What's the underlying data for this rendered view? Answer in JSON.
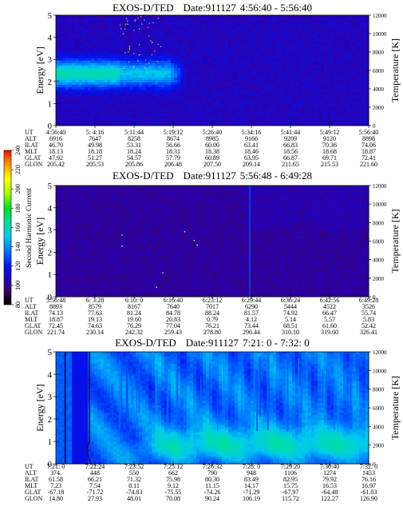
{
  "colorbar": {
    "title": "Second Harmonic Current",
    "ticks": [
      "240",
      "220",
      "200",
      "180",
      "160",
      "140",
      "120",
      "100",
      "80"
    ],
    "colors": [
      "#000000",
      "#3a0070",
      "#2a00b0",
      "#0010f0",
      "#0070ff",
      "#00c8f0",
      "#00e0a0",
      "#00e020",
      "#a0ff00",
      "#ffff00",
      "#ffb000",
      "#ff6000",
      "#ff0000"
    ]
  },
  "panels": [
    {
      "title": "EXOS-D/TED",
      "date": "Date:911127",
      "time_range": "4:56:40 - 5:56:40",
      "ylabel_left": "Energy [eV]",
      "ylabel_right": "Temperature [K]",
      "y_ticks": [
        "0",
        "1",
        "2",
        "3",
        "4",
        "5"
      ],
      "y_right_ticks": [
        "0",
        "2000",
        "4000",
        "6000",
        "8000",
        "10000",
        "12000"
      ],
      "row_labels": [
        "UT",
        "ALT",
        "ILAT",
        "MLT",
        "GLAT",
        "GLON"
      ],
      "columns": [
        [
          "4:56:40",
          "6916",
          "46.70",
          "18.13",
          "47.92",
          "205.42"
        ],
        [
          "5: 4:16",
          "7647",
          "49.98",
          "18.18",
          "51.27",
          "205.53"
        ],
        [
          "5:11:44",
          "8258",
          "53.31",
          "18.24",
          "54.57",
          "205.86"
        ],
        [
          "5:19:12",
          "8674",
          "56.66",
          "18.31",
          "57.79",
          "206.48"
        ],
        [
          "5:26:40",
          "8985",
          "60.00",
          "18.38",
          "60.89",
          "207.50"
        ],
        [
          "5:34:16",
          "9166",
          "63.41",
          "18.46",
          "63.95",
          "209.14"
        ],
        [
          "5:41:44",
          "9209",
          "66.83",
          "18.56",
          "66.87",
          "211.65"
        ],
        [
          "5:49:12",
          "9120",
          "70.36",
          "18.68",
          "69.71",
          "215.53"
        ],
        [
          "5:56:40",
          "8898",
          "74.06",
          "18.87",
          "72.41",
          "221.60"
        ]
      ]
    },
    {
      "title": "EXOS-D/TED",
      "date": "Date:911127",
      "time_range": "5:56:48 - 6:49:28",
      "ylabel_left": "Energy [eV]",
      "ylabel_right": "Temperature [K]",
      "y_ticks": [
        "0",
        "1",
        "2",
        "3",
        "4",
        "5"
      ],
      "y_right_ticks": [
        "0",
        "2000",
        "4000",
        "6000",
        "8000",
        "10000",
        "12000"
      ],
      "row_labels": [
        "UT",
        "ALT",
        "ILAT",
        "MLT",
        "GLAT",
        "GLON"
      ],
      "columns": [
        [
          "5:56:48",
          "8893",
          "74.13",
          "18.87",
          "72.45",
          "221.74"
        ],
        [
          "6: 3:28",
          "8579",
          "77.63",
          "19.13",
          "74.63",
          "230.14"
        ],
        [
          "6:10: 0",
          "8167",
          "81.24",
          "19.60",
          "76.29",
          "242.32"
        ],
        [
          "6:16:40",
          "7640",
          "84.78",
          "20.83",
          "77.04",
          "259.43"
        ],
        [
          "6:23:12",
          "7017",
          "88.24",
          "0.79",
          "76.21",
          "278.80"
        ],
        [
          "6:29:44",
          "6290",
          "81.57",
          "4.12",
          "73.44",
          "296.44"
        ],
        [
          "6:36:24",
          "5444",
          "74.92",
          "5.14",
          "68.51",
          "310.10"
        ],
        [
          "6:42:56",
          "4522",
          "66.47",
          "5.57",
          "61.60",
          "319.60"
        ],
        [
          "6:49:28",
          "3526",
          "55.74",
          "5.83",
          "52.42",
          "326.41"
        ]
      ]
    },
    {
      "title": "EXOS-D/TED",
      "date": "Date:911127",
      "time_range": "7:21: 0 - 7:32: 0",
      "ylabel_left": "Energy [eV]",
      "ylabel_right": "Temperature [K]",
      "y_ticks": [
        "0",
        "1",
        "2",
        "3",
        "4",
        "5"
      ],
      "y_right_ticks": [
        "0",
        "2000",
        "4000",
        "6000",
        "8000",
        "10000",
        "12000"
      ],
      "row_labels": [
        "UT",
        "ALT",
        "ILAT",
        "MLT",
        "GLAT",
        "GLON"
      ],
      "columns": [
        [
          "7:21: 0",
          "374.",
          "61.58",
          "7.23",
          "-67.18",
          "14.80"
        ],
        [
          "7:22:24",
          "448",
          "66.21",
          "7.54",
          "-71.72",
          "27.93"
        ],
        [
          "7:23:52",
          "550",
          "71.32",
          "8.11",
          "-74.83",
          "48.01"
        ],
        [
          "7:25:12",
          "662",
          "75.98",
          "9.12",
          "-75.55",
          "70.08"
        ],
        [
          "7:26:32",
          "790",
          "80.30",
          "11.15",
          "-74.26",
          "90.24"
        ],
        [
          "7:28: 0",
          "948",
          "83.49",
          "14.17",
          "-71.29",
          "106.19"
        ],
        [
          "7:29:20",
          "1106",
          "82.95",
          "15.75",
          "-67.97",
          "115.72"
        ],
        [
          "7:30:40",
          "1274",
          "79.92",
          "16.53",
          "-64.48",
          "122.27"
        ],
        [
          "7:32: 0",
          "1453",
          "76.16",
          "16.97",
          "-61.03",
          "126.90"
        ]
      ]
    }
  ],
  "chart_data": [
    {
      "type": "heatmap",
      "title": "EXOS-D/TED Date:911127 4:56:40 - 5:56:40",
      "xlabel": "UT",
      "ylabel": "Energy [eV]",
      "ylabel_right": "Temperature [K]",
      "ylim": [
        0,
        5
      ],
      "ylim_right": [
        0,
        12000
      ],
      "x": [
        "4:56:40",
        "5: 4:16",
        "5:11:44",
        "5:19:12",
        "5:26:40",
        "5:34:16",
        "5:41:44",
        "5:49:12",
        "5:56:40"
      ],
      "colorbar_label": "Second Harmonic Current",
      "colorbar_range": [
        80,
        240
      ],
      "colorbar_ticks": [
        80,
        100,
        120,
        140,
        160,
        180,
        200,
        220,
        240
      ],
      "background_level": 108,
      "features": [
        {
          "type": "band",
          "x_from": "4:56:40",
          "x_to": "5:19:12",
          "energy_center": 2.35,
          "energy_halfwidth": 0.7,
          "peak_level": 150
        },
        {
          "type": "speckles",
          "x_from": "5: 4:16",
          "x_to": "5:11:44",
          "energy_from": 2.5,
          "energy_to": 5,
          "level": 200
        }
      ]
    },
    {
      "type": "heatmap",
      "title": "EXOS-D/TED Date:911127 5:56:48 - 6:49:28",
      "xlabel": "UT",
      "ylabel": "Energy [eV]",
      "ylabel_right": "Temperature [K]",
      "ylim": [
        0,
        5
      ],
      "ylim_right": [
        0,
        12000
      ],
      "x": [
        "5:56:48",
        "6: 3:28",
        "6:10: 0",
        "6:16:40",
        "6:23:12",
        "6:29:44",
        "6:36:24",
        "6:42:56",
        "6:49:28"
      ],
      "colorbar_label": "Second Harmonic Current",
      "colorbar_range": [
        80,
        240
      ],
      "background_level": 105,
      "features": [
        {
          "type": "spike",
          "x": "6:29:44",
          "level": 130
        },
        {
          "type": "speckles",
          "x_from": "6: 3:28",
          "x_to": "6:23:12",
          "energy_from": 0.3,
          "energy_to": 3.2,
          "level": 210
        }
      ]
    },
    {
      "type": "heatmap",
      "title": "EXOS-D/TED Date:911127 7:21: 0 - 7:32: 0",
      "xlabel": "UT",
      "ylabel": "Energy [eV]",
      "ylabel_right": "Temperature [K]",
      "ylim": [
        0,
        5
      ],
      "ylim_right": [
        0,
        12000
      ],
      "x": [
        "7:21: 0",
        "7:22:24",
        "7:23:52",
        "7:25:12",
        "7:26:32",
        "7:28: 0",
        "7:29:20",
        "7:30:40",
        "7:32: 0"
      ],
      "colorbar_label": "Second Harmonic Current",
      "colorbar_range": [
        80,
        240
      ],
      "background_level": 135,
      "features": [
        {
          "type": "data_gap",
          "x_from": "7:21: 0",
          "x_to": "7:22:24"
        },
        {
          "type": "band",
          "x_from": "7:25:12",
          "x_to": "7:32: 0",
          "energy_from": 0.5,
          "energy_to": 2.0,
          "peak_level": 170
        }
      ]
    }
  ]
}
